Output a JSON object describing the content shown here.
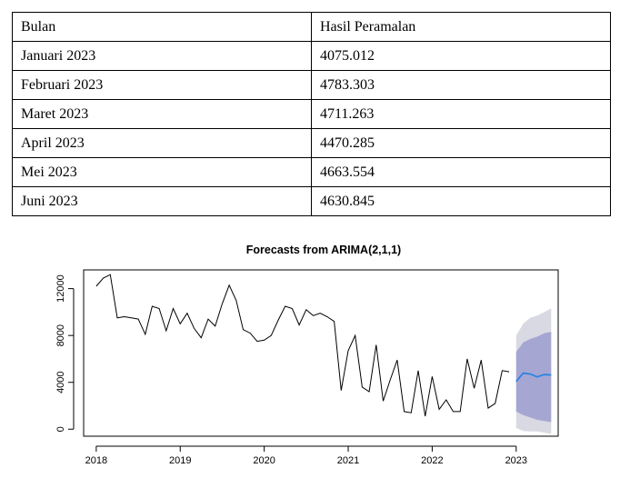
{
  "table": {
    "headers": [
      "Bulan",
      "Hasil Peramalan"
    ],
    "rows": [
      [
        "Januari 2023",
        "4075.012"
      ],
      [
        "Februari 2023",
        "4783.303"
      ],
      [
        "Maret 2023",
        "4711.263"
      ],
      [
        "April 2023",
        "4470.285"
      ],
      [
        "Mei 2023",
        "4663.554"
      ],
      [
        "Juni 2023",
        "4630.845"
      ]
    ]
  },
  "chart_data": {
    "type": "line",
    "title": "Forecasts from ARIMA(2,1,1)",
    "xlabel": "",
    "ylabel": "",
    "xlim": [
      2017.85,
      2023.5
    ],
    "ylim": [
      -600,
      13600
    ],
    "x_ticks": [
      2018,
      2019,
      2020,
      2021,
      2022,
      2023
    ],
    "y_ticks": [
      0,
      4000,
      8000,
      12000
    ],
    "series": [
      {
        "role": "observed",
        "color": "#000000",
        "x_start": 2018.0,
        "x_step": 0.08333,
        "values": [
          12200,
          12900,
          13200,
          9500,
          9600,
          9500,
          9400,
          8100,
          10500,
          10300,
          8400,
          10300,
          9000,
          9900,
          8600,
          7800,
          9400,
          8800,
          10700,
          12300,
          11000,
          8500,
          8200,
          7500,
          7600,
          8000,
          9300,
          10500,
          10300,
          8900,
          10200,
          9700,
          9900,
          9600,
          9200,
          3300,
          6700,
          8000,
          3600,
          3200,
          7200,
          2400,
          4200,
          5900,
          1500,
          1400,
          5000,
          1100,
          4500,
          1700,
          2500,
          1500,
          1500,
          6000,
          3500,
          5900,
          1800,
          2200,
          5000,
          4900
        ]
      },
      {
        "role": "forecast",
        "color": "#2b83e3",
        "x_start": 2023.0,
        "x_step": 0.08333,
        "values": [
          4075.012,
          4783.303,
          4711.263,
          4470.285,
          4663.554,
          4630.845
        ]
      }
    ],
    "intervals": [
      {
        "level": "95%",
        "color": "#d9d9e3",
        "lower": [
          100,
          -150,
          -200,
          -200,
          -300,
          -400
        ],
        "upper": [
          8000,
          9000,
          9500,
          9700,
          10000,
          10300
        ]
      },
      {
        "level": "80%",
        "color": "#a6a6d3",
        "lower": [
          1500,
          1200,
          1000,
          800,
          700,
          600
        ],
        "upper": [
          6600,
          7400,
          7700,
          7900,
          8200,
          8300
        ]
      }
    ],
    "colors": {
      "observed": "#000000",
      "forecast": "#2b83e3",
      "interval_95": "#d9d9e3",
      "interval_80": "#a6a6d3"
    }
  }
}
